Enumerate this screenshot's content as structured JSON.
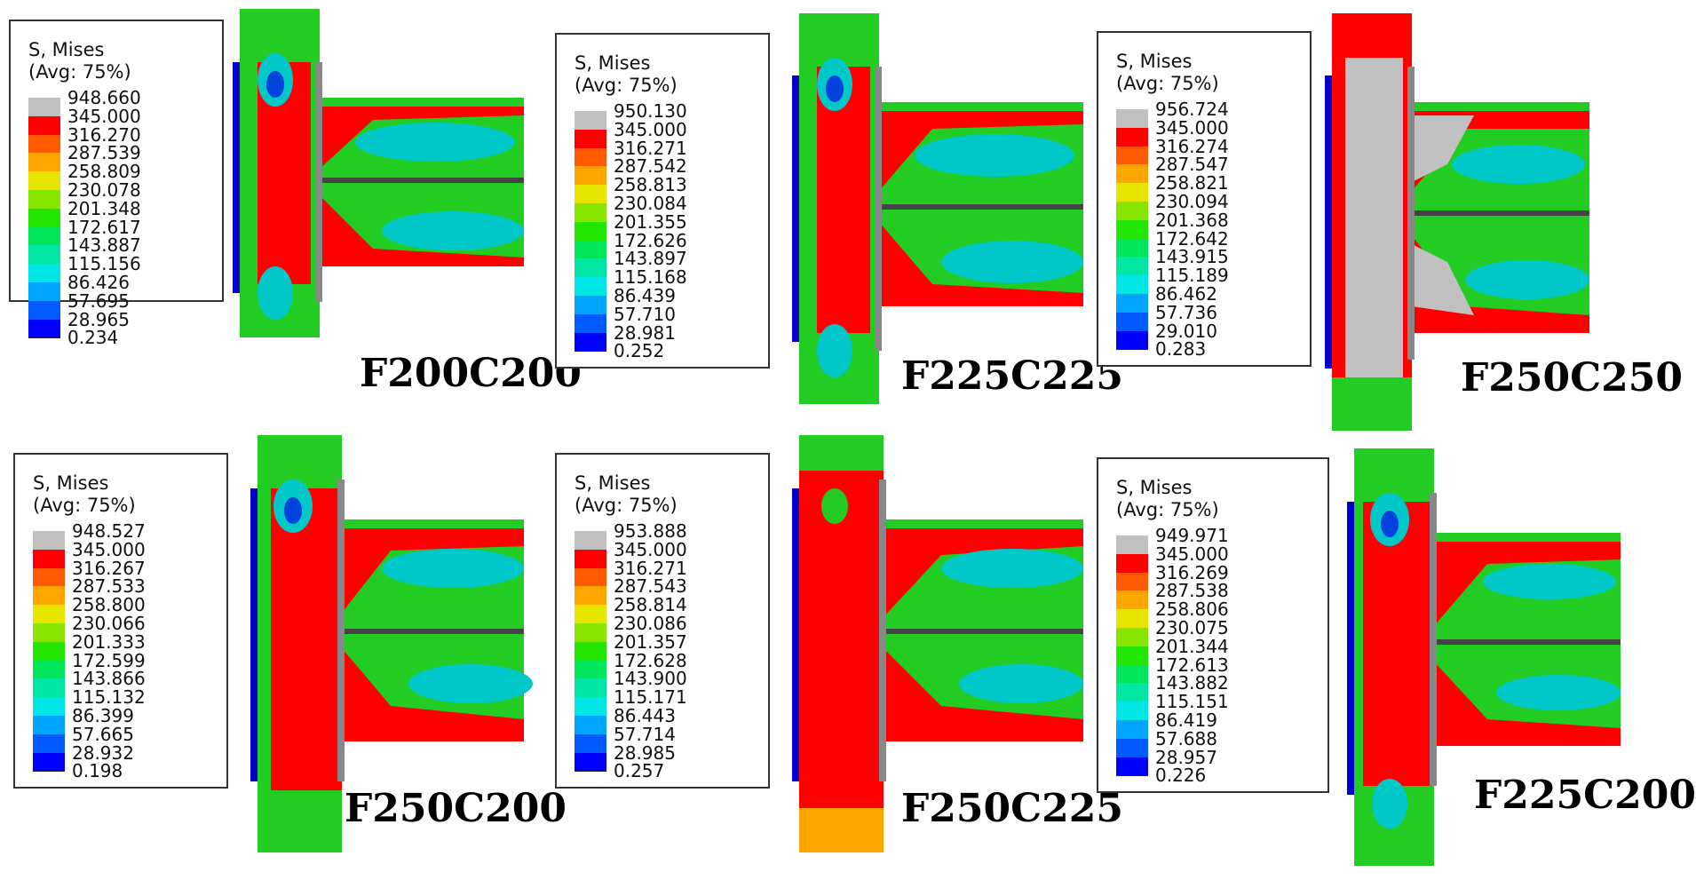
{
  "panels": [
    {
      "label": "F200C200",
      "legend_title": "S, Mises",
      "legend_subtitle": "(Avg: 75%)",
      "legend_values": [
        "948.660",
        "345.000",
        "316.270",
        "287.539",
        "258.809",
        "230.078",
        "201.348",
        "172.617",
        "143.887",
        "115.156",
        "86.426",
        "57.695",
        "28.965",
        "0.234"
      ]
    },
    {
      "label": "F225C225",
      "legend_title": "S, Mises",
      "legend_subtitle": "(Avg: 75%)",
      "legend_values": [
        "950.130",
        "345.000",
        "316.271",
        "287.542",
        "258.813",
        "230.084",
        "201.355",
        "172.626",
        "143.897",
        "115.168",
        "86.439",
        "57.710",
        "28.981",
        "0.252"
      ]
    },
    {
      "label": "F250C250",
      "legend_title": "S, Mises",
      "legend_subtitle": "(Avg: 75%)",
      "legend_values": [
        "956.724",
        "345.000",
        "316.274",
        "287.547",
        "258.821",
        "230.094",
        "201.368",
        "172.642",
        "143.915",
        "115.189",
        "86.462",
        "57.736",
        "29.010",
        "0.283"
      ]
    },
    {
      "label": "F250C200",
      "legend_title": "S, Mises",
      "legend_subtitle": "(Avg: 75%)",
      "legend_values": [
        "948.527",
        "345.000",
        "316.267",
        "287.533",
        "258.800",
        "230.066",
        "201.333",
        "172.599",
        "143.866",
        "115.132",
        "86.399",
        "57.665",
        "28.932",
        "0.198"
      ]
    },
    {
      "label": "F250C225",
      "legend_title": "S, Mises",
      "legend_subtitle": "(Avg: 75%)",
      "legend_values": [
        "953.888",
        "345.000",
        "316.271",
        "287.543",
        "258.814",
        "230.086",
        "201.357",
        "172.628",
        "143.900",
        "115.171",
        "86.443",
        "57.714",
        "28.985",
        "0.257"
      ]
    },
    {
      "label": "F225C200",
      "legend_title": "S, Mises",
      "legend_subtitle": "(Avg: 75%)",
      "legend_values": [
        "949.971",
        "345.000",
        "316.269",
        "287.538",
        "258.806",
        "230.075",
        "201.344",
        "172.613",
        "143.882",
        "115.151",
        "86.419",
        "57.688",
        "28.957",
        "0.226"
      ]
    }
  ],
  "colors": {
    "legend_scale": [
      "#c0c0c0",
      "#ff0000",
      "#ff5a00",
      "#ffa500",
      "#e6e600",
      "#88e600",
      "#22e600",
      "#00e65a",
      "#00e6a5",
      "#00e6e6",
      "#00a5ff",
      "#005aff",
      "#0000ff"
    ],
    "plastic": "#c0c0c0",
    "high": "#ff0000",
    "mid": "#22cc22",
    "low": "#00c8c8",
    "lowest": "#0044dd"
  }
}
